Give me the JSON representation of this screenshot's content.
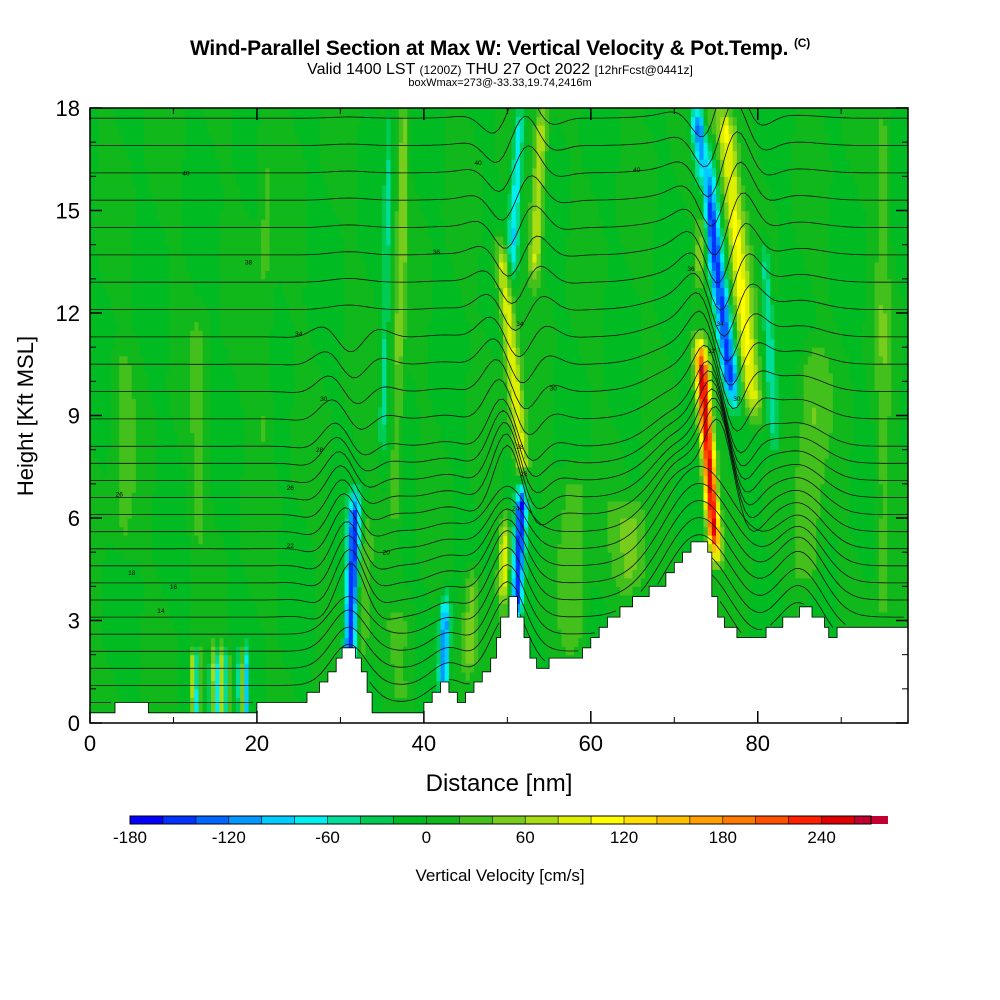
{
  "header": {
    "title": "Wind-Parallel Section at Max W: Vertical Velocity & Pot.Temp.",
    "copyright": "(C)",
    "subtitle_main": "Valid 1400 LST",
    "subtitle_utc": "(1200Z)",
    "subtitle_date": "THU 27 Oct 2022",
    "subtitle_fcst": "[12hrFcst@0441z]",
    "subtitle2": "boxWmax=273@-33.33,19.74,2416m"
  },
  "chart_data": {
    "type": "heatmap",
    "xlabel": "Distance [nm]",
    "ylabel": "Height [Kft MSL]",
    "xlim": [
      0,
      98
    ],
    "ylim": [
      0,
      18
    ],
    "xticks": [
      0,
      20,
      40,
      60,
      80
    ],
    "yticks": [
      0,
      3,
      6,
      9,
      12,
      15,
      18
    ],
    "colorbar_label": "Vertical Velocity [cm/s]",
    "colorbar_range": [
      -180,
      270
    ],
    "colorbar_step": 20,
    "colorbar_ticks": [
      -180,
      -120,
      -60,
      0,
      60,
      120,
      180,
      240
    ],
    "colorbar_colors": [
      "#0000ff",
      "#0033ff",
      "#0066ff",
      "#0099ff",
      "#00ccff",
      "#00eeee",
      "#00dd99",
      "#00cc55",
      "#00bb22",
      "#11b81c",
      "#44c01c",
      "#77cc1c",
      "#aadd11",
      "#ddee00",
      "#ffff00",
      "#ffe000",
      "#ffc000",
      "#ffa000",
      "#ff7800",
      "#ff5000",
      "#ff2000",
      "#e00000",
      "#c00030"
    ],
    "background_value": 0,
    "terrain_nm_kft": [
      [
        0,
        0.3
      ],
      [
        3,
        0.3
      ],
      [
        3,
        0.6
      ],
      [
        7,
        0.6
      ],
      [
        7,
        0.3
      ],
      [
        20,
        0.3
      ],
      [
        20,
        0.6
      ],
      [
        26,
        0.6
      ],
      [
        26,
        0.9
      ],
      [
        27.5,
        0.9
      ],
      [
        27.5,
        1.2
      ],
      [
        28.5,
        1.2
      ],
      [
        28.5,
        1.5
      ],
      [
        29.5,
        1.5
      ],
      [
        29.5,
        1.9
      ],
      [
        30.2,
        1.9
      ],
      [
        30.2,
        2.2
      ],
      [
        31.8,
        2.2
      ],
      [
        31.8,
        1.9
      ],
      [
        32.5,
        1.9
      ],
      [
        32.5,
        1.5
      ],
      [
        33.2,
        1.5
      ],
      [
        33.2,
        0.9
      ],
      [
        33.8,
        0.9
      ],
      [
        33.8,
        0.3
      ],
      [
        40,
        0.3
      ],
      [
        40,
        0.6
      ],
      [
        41,
        0.6
      ],
      [
        41,
        0.9
      ],
      [
        42,
        0.9
      ],
      [
        42,
        1.2
      ],
      [
        43,
        1.2
      ],
      [
        43,
        0.9
      ],
      [
        44,
        0.9
      ],
      [
        44,
        0.6
      ],
      [
        45,
        0.6
      ],
      [
        45,
        0.9
      ],
      [
        46,
        0.9
      ],
      [
        46,
        1.2
      ],
      [
        47,
        1.2
      ],
      [
        47,
        1.5
      ],
      [
        48,
        1.5
      ],
      [
        48,
        1.9
      ],
      [
        48.7,
        1.9
      ],
      [
        48.7,
        2.5
      ],
      [
        49.2,
        2.5
      ],
      [
        49.2,
        3.1
      ],
      [
        50.2,
        3.1
      ],
      [
        50.2,
        3.7
      ],
      [
        51.2,
        3.7
      ],
      [
        51.2,
        3.1
      ],
      [
        52,
        3.1
      ],
      [
        52,
        2.5
      ],
      [
        52.7,
        2.5
      ],
      [
        52.7,
        1.9
      ],
      [
        53.5,
        1.9
      ],
      [
        53.5,
        1.6
      ],
      [
        55,
        1.6
      ],
      [
        55,
        1.9
      ],
      [
        59,
        1.9
      ],
      [
        59,
        2.2
      ],
      [
        60,
        2.2
      ],
      [
        60,
        2.5
      ],
      [
        61,
        2.5
      ],
      [
        61,
        2.8
      ],
      [
        62,
        2.8
      ],
      [
        62,
        3.1
      ],
      [
        63.5,
        3.1
      ],
      [
        63.5,
        3.4
      ],
      [
        65,
        3.4
      ],
      [
        65,
        3.7
      ],
      [
        67,
        3.7
      ],
      [
        67,
        4.0
      ],
      [
        69,
        4.0
      ],
      [
        69,
        4.4
      ],
      [
        70,
        4.4
      ],
      [
        70,
        4.7
      ],
      [
        71,
        4.7
      ],
      [
        71,
        5.0
      ],
      [
        72,
        5.0
      ],
      [
        72,
        5.3
      ],
      [
        74,
        5.3
      ],
      [
        74,
        5.0
      ],
      [
        74.5,
        5.0
      ],
      [
        74.5,
        3.7
      ],
      [
        75.2,
        3.7
      ],
      [
        75.2,
        3.1
      ],
      [
        76,
        3.1
      ],
      [
        76,
        2.8
      ],
      [
        77.5,
        2.8
      ],
      [
        77.5,
        2.5
      ],
      [
        81,
        2.5
      ],
      [
        81,
        2.8
      ],
      [
        83,
        2.8
      ],
      [
        83,
        3.1
      ],
      [
        85,
        3.1
      ],
      [
        85,
        3.4
      ],
      [
        86.5,
        3.4
      ],
      [
        86.5,
        3.1
      ],
      [
        88,
        3.1
      ],
      [
        88,
        2.8
      ],
      [
        88.5,
        2.8
      ],
      [
        88.5,
        2.5
      ],
      [
        89.5,
        2.5
      ],
      [
        89.5,
        2.8
      ],
      [
        98,
        2.8
      ],
      [
        98,
        3.1
      ]
    ],
    "features": [
      {
        "x": 31.0,
        "y0": 1.4,
        "y1": 6.6,
        "w": 1.6,
        "lean": 0.15,
        "value": -150
      },
      {
        "x": 32.6,
        "y0": 2.0,
        "y1": 6.0,
        "w": 1.6,
        "lean": 0.15,
        "value": 40
      },
      {
        "x": 42.3,
        "y0": 0.8,
        "y1": 3.6,
        "w": 1.4,
        "lean": 0.1,
        "value": -120
      },
      {
        "x": 45.5,
        "y0": 1.5,
        "y1": 4.5,
        "w": 2.5,
        "lean": 0.1,
        "value": 60
      },
      {
        "x": 51.0,
        "y0": 3.0,
        "y1": 7.0,
        "w": 1.5,
        "lean": 0.2,
        "value": -150
      },
      {
        "x": 49.5,
        "y0": 3.5,
        "y1": 6.0,
        "w": 1.5,
        "lean": 0.1,
        "value": 90
      },
      {
        "x": 52.0,
        "y0": 7.0,
        "y1": 14.0,
        "w": 2.0,
        "lean": -0.4,
        "value": 100
      },
      {
        "x": 50.5,
        "y0": 13.0,
        "y1": 18.0,
        "w": 1.5,
        "lean": 0.2,
        "value": -80
      },
      {
        "x": 53.2,
        "y0": 13.0,
        "y1": 18.0,
        "w": 1.8,
        "lean": 0.2,
        "value": 80
      },
      {
        "x": 74.9,
        "y0": 5.0,
        "y1": 11.0,
        "w": 1.7,
        "lean": -0.3,
        "value": 255
      },
      {
        "x": 77.0,
        "y0": 9.5,
        "y1": 18.0,
        "w": 2.2,
        "lean": -0.5,
        "value": -150
      },
      {
        "x": 79.5,
        "y0": 9.0,
        "y1": 18.0,
        "w": 2.6,
        "lean": -0.4,
        "value": 110
      },
      {
        "x": 73.0,
        "y0": 13.0,
        "y1": 18.0,
        "w": 1.5,
        "lean": 0.2,
        "value": 60
      },
      {
        "x": 82.0,
        "y0": 8.0,
        "y1": 14.0,
        "w": 1.5,
        "lean": -0.2,
        "value": -60
      },
      {
        "x": 86.0,
        "y0": 4.0,
        "y1": 11.0,
        "w": 4.0,
        "lean": 0.1,
        "value": 40
      },
      {
        "x": 65.0,
        "y0": 3.8,
        "y1": 6.5,
        "w": 5.0,
        "lean": 0.0,
        "value": 50
      },
      {
        "x": 58.0,
        "y0": 2.0,
        "y1": 7.5,
        "w": 3.5,
        "lean": 0.0,
        "value": 35
      },
      {
        "x": 37.5,
        "y0": 0.3,
        "y1": 3.5,
        "w": 4.0,
        "lean": 0.0,
        "value": 25
      },
      {
        "x": 4.0,
        "y0": 5.0,
        "y1": 11.0,
        "w": 3.0,
        "lean": 0.0,
        "value": 25
      },
      {
        "x": 13.0,
        "y0": 5.0,
        "y1": 12.0,
        "w": 2.5,
        "lean": 0.0,
        "value": 20
      },
      {
        "x": 21.0,
        "y0": 8.0,
        "y1": 18.0,
        "w": 2.0,
        "lean": 0.0,
        "value": 25
      },
      {
        "x": 36.5,
        "y0": 6.0,
        "y1": 18.0,
        "w": 1.5,
        "lean": 0.1,
        "value": 50
      },
      {
        "x": 35.0,
        "y0": 8.0,
        "y1": 18.0,
        "w": 1.0,
        "lean": 0.1,
        "value": -40
      },
      {
        "x": 95.0,
        "y0": 3.0,
        "y1": 18.0,
        "w": 2.0,
        "lean": 0.0,
        "value": 30
      }
    ],
    "waves": {
      "x0": 12.0,
      "x1": 19.0,
      "y0": 0.3,
      "y1": 2.6,
      "count": 8,
      "amp": 70
    },
    "contour_labels": [
      {
        "x": 11.5,
        "y": 16.1,
        "text": "40"
      },
      {
        "x": 46.5,
        "y": 16.4,
        "text": "40"
      },
      {
        "x": 65.5,
        "y": 16.2,
        "text": "40"
      },
      {
        "x": 19.0,
        "y": 13.5,
        "text": "38"
      },
      {
        "x": 41.5,
        "y": 13.8,
        "text": "36"
      },
      {
        "x": 72.0,
        "y": 13.3,
        "text": "36"
      },
      {
        "x": 25.0,
        "y": 11.4,
        "text": "34"
      },
      {
        "x": 51.5,
        "y": 11.7,
        "text": "34"
      },
      {
        "x": 75.5,
        "y": 11.7,
        "text": "34"
      },
      {
        "x": 74.5,
        "y": 10.9,
        "text": "32"
      },
      {
        "x": 28.0,
        "y": 9.5,
        "text": "30"
      },
      {
        "x": 55.5,
        "y": 9.8,
        "text": "30"
      },
      {
        "x": 77.5,
        "y": 9.5,
        "text": "30"
      },
      {
        "x": 27.5,
        "y": 8.0,
        "text": "28"
      },
      {
        "x": 51.5,
        "y": 8.1,
        "text": "28"
      },
      {
        "x": 24.0,
        "y": 6.9,
        "text": "26"
      },
      {
        "x": 52.0,
        "y": 7.3,
        "text": "26"
      },
      {
        "x": 3.5,
        "y": 6.7,
        "text": "26"
      },
      {
        "x": 51.0,
        "y": 6.3,
        "text": "24"
      },
      {
        "x": 24.0,
        "y": 5.2,
        "text": "22"
      },
      {
        "x": 35.5,
        "y": 5.0,
        "text": "20"
      },
      {
        "x": 5.0,
        "y": 4.4,
        "text": "18"
      },
      {
        "x": 10.0,
        "y": 4.0,
        "text": "16"
      },
      {
        "x": 8.5,
        "y": 3.3,
        "text": "14"
      }
    ]
  }
}
